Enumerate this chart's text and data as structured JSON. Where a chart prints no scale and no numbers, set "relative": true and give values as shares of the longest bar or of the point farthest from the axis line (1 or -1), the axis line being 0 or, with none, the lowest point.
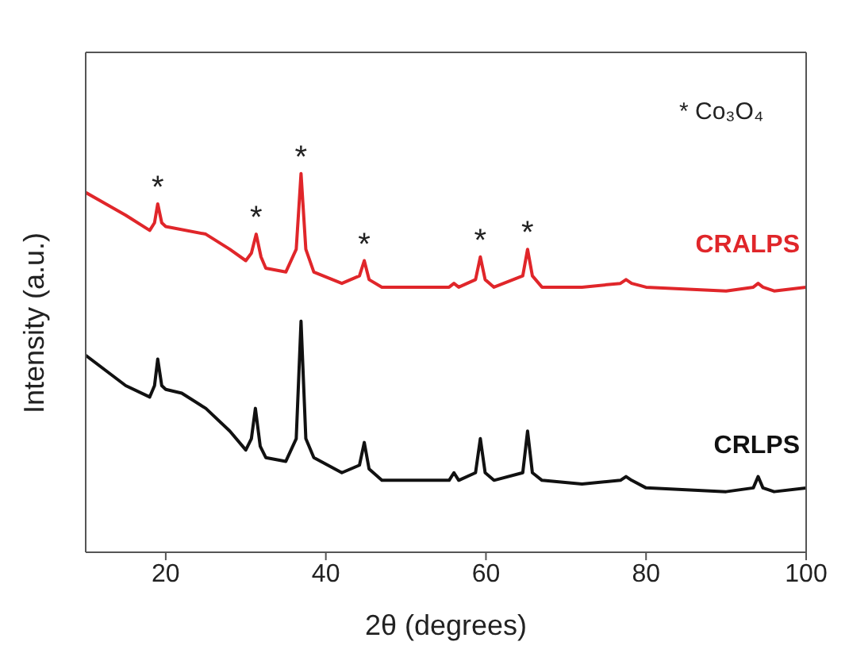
{
  "chart_data": {
    "type": "line",
    "relative": true,
    "xlabel": "2θ (degrees)",
    "ylabel": "Intensity (a.u.)",
    "xlim": [
      10,
      100
    ],
    "xticks": [
      20,
      40,
      60,
      80,
      100
    ],
    "tick_labels": "x",
    "grid": false,
    "legend": false,
    "marker": "none",
    "line_style": "solid",
    "annotations": [
      "* Co₃O₄",
      {
        "text": "*",
        "x": 19,
        "y": 0.92
      },
      {
        "text": "*",
        "x": 31.3,
        "y": 0.84
      },
      {
        "text": "*",
        "x": 36.9,
        "y": 1
      },
      {
        "text": "*",
        "x": 44.8,
        "y": 0.77
      },
      {
        "text": "*",
        "x": 59.3,
        "y": 0.78
      },
      {
        "text": "*",
        "x": 65.2,
        "y": 0.8
      }
    ],
    "series": [
      {
        "name": "CRALPS",
        "color": "#e0262a",
        "x": [
          10,
          15,
          18,
          18.6,
          19,
          19.5,
          20,
          25,
          28,
          30,
          30.7,
          31.3,
          31.9,
          32.5,
          35,
          36.3,
          36.9,
          37.5,
          38.5,
          42,
          44.2,
          44.8,
          45.4,
          47,
          52,
          55.4,
          56,
          56.6,
          58.7,
          59.3,
          59.9,
          61,
          64.6,
          65.2,
          65.8,
          67,
          72,
          76.8,
          77.5,
          78.2,
          80,
          90,
          93.4,
          94,
          94.6,
          96,
          100
        ],
        "values": [
          0.95,
          0.89,
          0.85,
          0.87,
          0.92,
          0.87,
          0.86,
          0.84,
          0.8,
          0.77,
          0.79,
          0.84,
          0.78,
          0.75,
          0.74,
          0.8,
          1,
          0.8,
          0.74,
          0.71,
          0.73,
          0.77,
          0.72,
          0.7,
          0.7,
          0.7,
          0.71,
          0.7,
          0.72,
          0.78,
          0.72,
          0.7,
          0.73,
          0.8,
          0.73,
          0.7,
          0.7,
          0.71,
          0.72,
          0.71,
          0.7,
          0.69,
          0.7,
          0.71,
          0.7,
          0.69,
          0.7
        ]
      },
      {
        "name": "CRLPS",
        "color": "#111111",
        "x": [
          10,
          15,
          18,
          18.6,
          19,
          19.5,
          20,
          22,
          25,
          28,
          30,
          30.7,
          31.2,
          31.8,
          32.5,
          35,
          36.3,
          36.9,
          37.5,
          38.5,
          42,
          44.2,
          44.8,
          45.4,
          47,
          52,
          55.4,
          56,
          56.6,
          58.7,
          59.3,
          59.9,
          61,
          64.6,
          65.2,
          65.8,
          67,
          72,
          76.8,
          77.5,
          78.2,
          80,
          90,
          93.4,
          94,
          94.6,
          96,
          100
        ],
        "values": [
          0.52,
          0.44,
          0.41,
          0.44,
          0.51,
          0.44,
          0.43,
          0.42,
          0.38,
          0.32,
          0.27,
          0.3,
          0.38,
          0.28,
          0.25,
          0.24,
          0.3,
          0.61,
          0.3,
          0.25,
          0.21,
          0.23,
          0.29,
          0.22,
          0.19,
          0.19,
          0.19,
          0.21,
          0.19,
          0.21,
          0.3,
          0.21,
          0.19,
          0.21,
          0.32,
          0.21,
          0.19,
          0.18,
          0.19,
          0.2,
          0.19,
          0.17,
          0.16,
          0.17,
          0.2,
          0.17,
          0.16,
          0.17
        ]
      }
    ]
  }
}
